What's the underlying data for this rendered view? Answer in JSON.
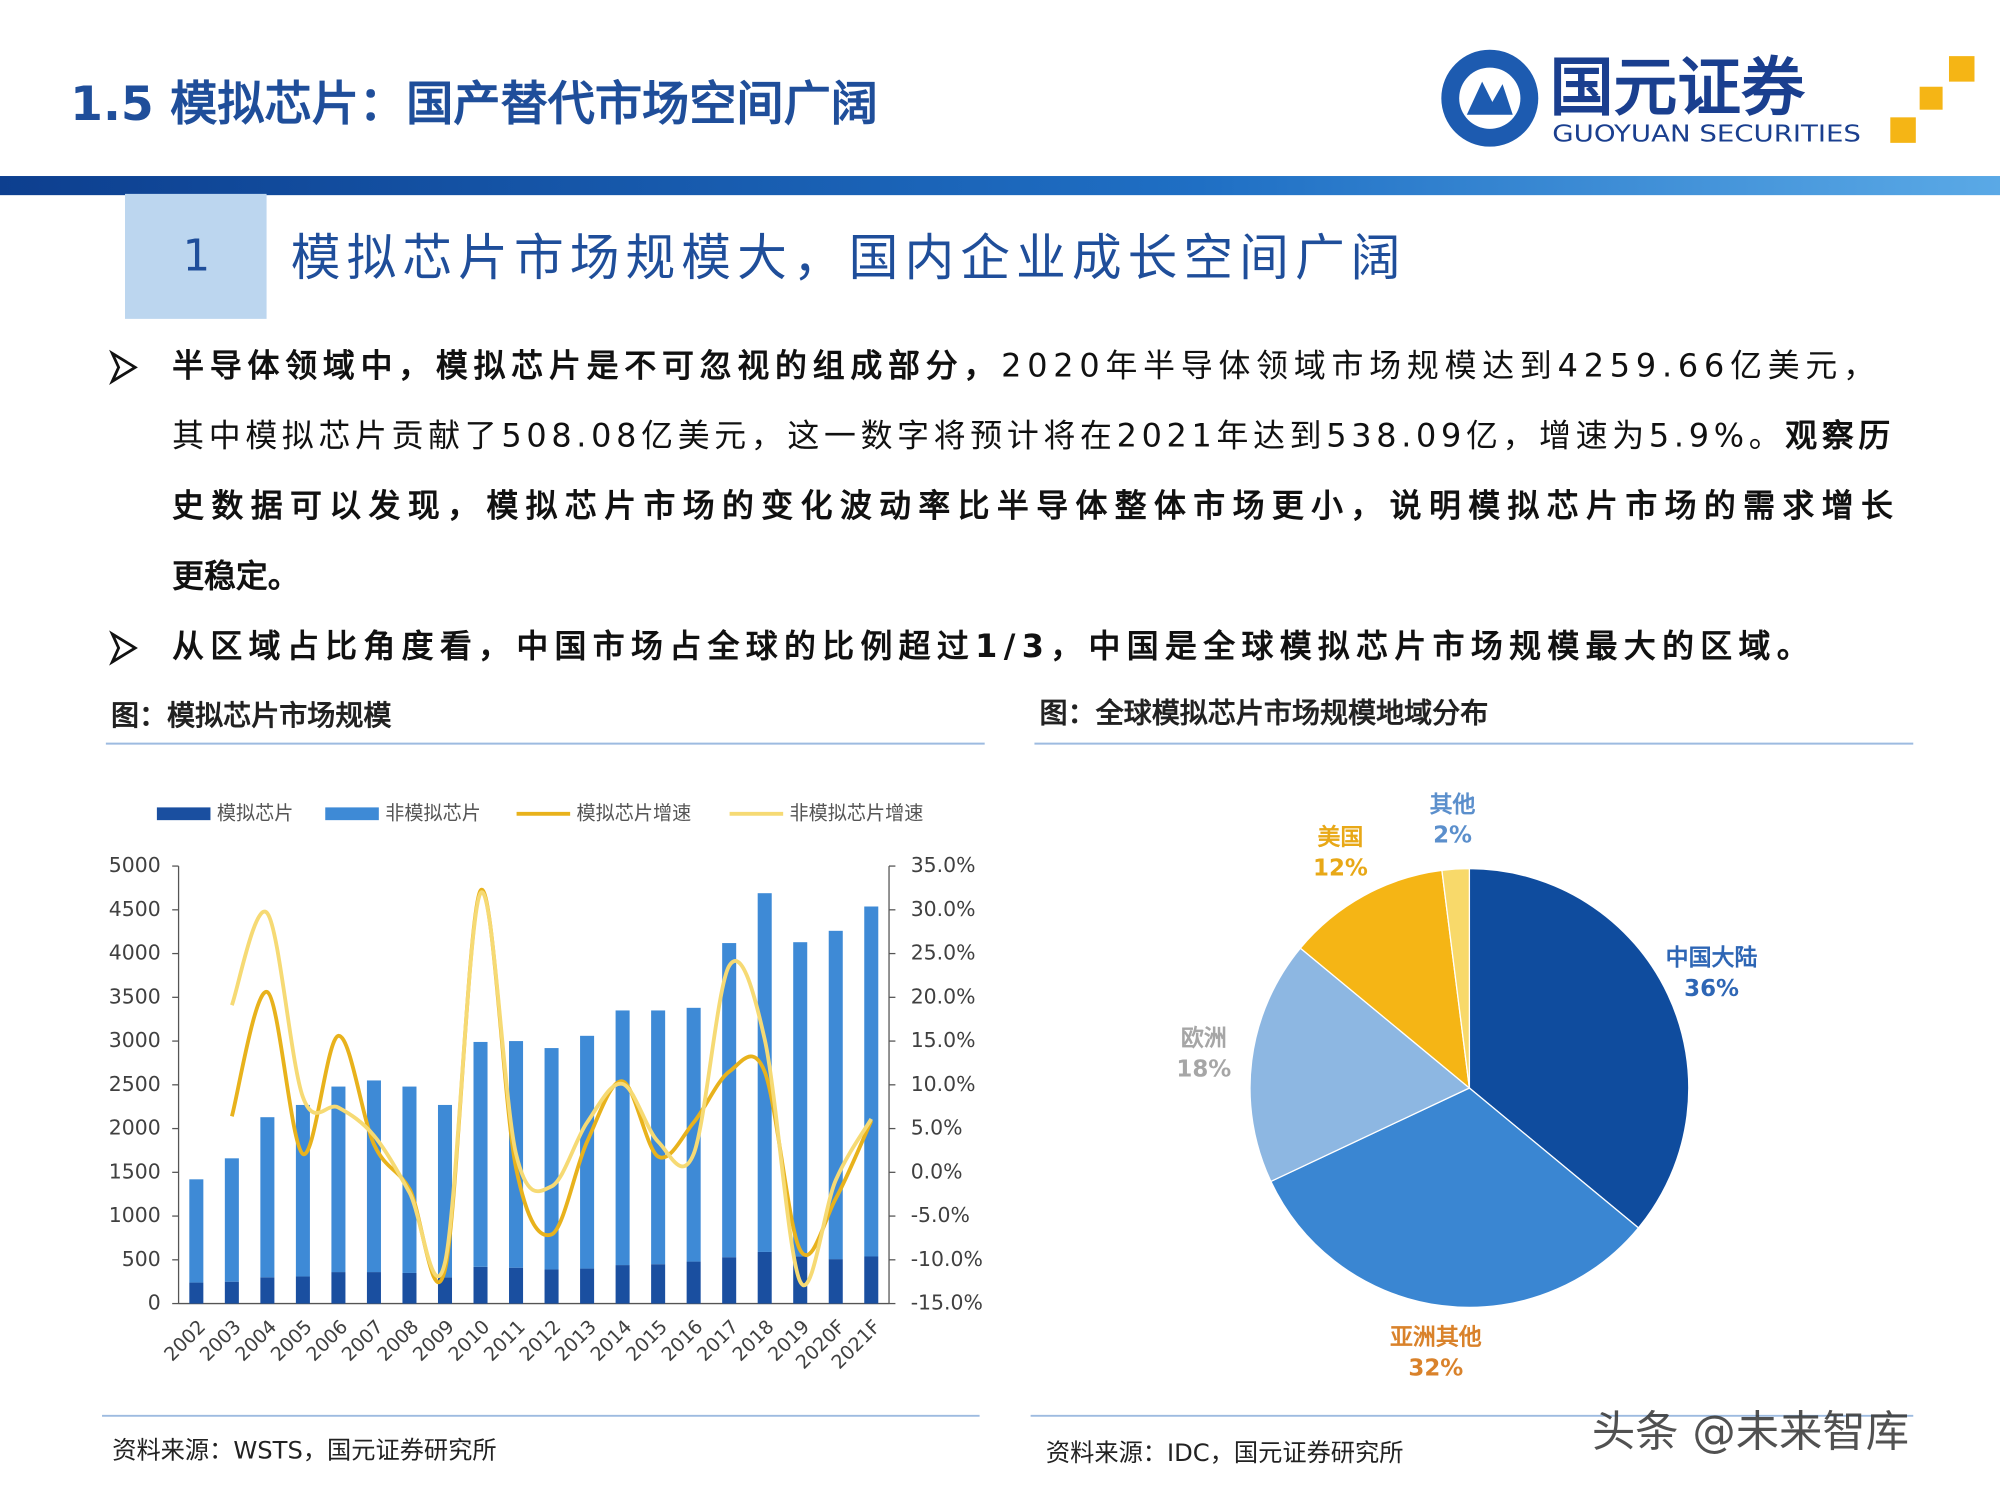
{
  "header": {
    "title": "1.5 模拟芯片：国产替代市场空间广阔",
    "logo_name": "国元证券",
    "logo_en": "GUOYUAN SECURITIES"
  },
  "section": {
    "number": "1",
    "title": "模拟芯片市场规模大，国内企业成长空间广阔"
  },
  "bullets": [
    [
      [
        {
          "text": "半导体领域中，模拟芯片是不可忽视的组成部分，",
          "bold": true
        },
        {
          "text": "2020年半导体领域市场规模达到4259.66亿美元，",
          "bold": false
        }
      ],
      [
        {
          "text": "其中模拟芯片贡献了508.08亿美元，这一数字将预计将在2021年达到538.09亿，增速为5.9%。",
          "bold": false
        },
        {
          "text": "观察历",
          "bold": true
        }
      ],
      [
        {
          "text": "史数据可以发现，模拟芯片市场的变化波动率比半导体整体市场更小，说明模拟芯片市场的需求增长",
          "bold": true
        }
      ],
      [
        {
          "text": "更稳定。",
          "bold": true
        }
      ]
    ],
    [
      [
        {
          "text": "从区域占比角度看，中国市场占全球的比例超过1/3，中国是全球模拟芯片市场规模最大的区域。",
          "bold": true
        }
      ]
    ]
  ],
  "chart_data": [
    {
      "type": "bar",
      "title": "图：模拟芯片市场规模",
      "source": "资料来源：WSTS，国元证券研究所",
      "categories": [
        "2002",
        "2003",
        "2004",
        "2005",
        "2006",
        "2007",
        "2008",
        "2009",
        "2010",
        "2011",
        "2012",
        "2013",
        "2014",
        "2015",
        "2016",
        "2017",
        "2018",
        "2019",
        "2020F",
        "2021F"
      ],
      "series": [
        {
          "name": "模拟芯片",
          "type": "bar",
          "color": "#1a4fa0",
          "values": [
            240,
            250,
            300,
            310,
            360,
            360,
            350,
            300,
            420,
            410,
            390,
            400,
            440,
            450,
            480,
            530,
            590,
            540,
            508,
            538
          ]
        },
        {
          "name": "非模拟芯片",
          "type": "bar",
          "color": "#3e8ad6",
          "values": [
            1180,
            1410,
            1830,
            1960,
            2120,
            2190,
            2130,
            1970,
            2570,
            2590,
            2530,
            2660,
            2910,
            2900,
            2900,
            3590,
            4100,
            3590,
            3752,
            4000
          ]
        },
        {
          "name": "模拟芯片增速",
          "type": "line",
          "axis": "y2",
          "color": "#e8b21c",
          "values": [
            null,
            6.4,
            20.6,
            2.1,
            15.6,
            3.2,
            -1.9,
            -11.1,
            32.2,
            0.5,
            -7.1,
            3.5,
            10.4,
            1.8,
            5.7,
            11.5,
            11.5,
            -8.9,
            -3,
            5.9
          ]
        },
        {
          "name": "非模拟芯片增速",
          "type": "line",
          "axis": "y2",
          "color": "#f6da74",
          "values": [
            null,
            19.1,
            29.6,
            8.6,
            7.4,
            4.2,
            -2.3,
            -10.3,
            31.9,
            2.1,
            -1.6,
            5.7,
            10.1,
            3.5,
            2.1,
            23.6,
            15.2,
            -12.5,
            -0.9,
            6.1
          ]
        }
      ],
      "ylim": [
        0,
        5000
      ],
      "yticks": [
        0,
        500,
        1000,
        1500,
        2000,
        2500,
        3000,
        3500,
        4000,
        4500,
        5000
      ],
      "y2lim": [
        -15,
        35
      ],
      "y2ticks": [
        {
          "value": -15,
          "label": "-15.0%"
        },
        {
          "value": -10,
          "label": "-10.0%"
        },
        {
          "value": -5,
          "label": "-5.0%"
        },
        {
          "value": 0,
          "label": "0.0%"
        },
        {
          "value": 5,
          "label": "5.0%"
        },
        {
          "value": 10,
          "label": "10.0%"
        },
        {
          "value": 15,
          "label": "15.0%"
        },
        {
          "value": 20,
          "label": "20.0%"
        },
        {
          "value": 25,
          "label": "25.0%"
        },
        {
          "value": 30,
          "label": "30.0%"
        },
        {
          "value": 35,
          "label": "35.0%"
        }
      ],
      "grid": false,
      "legend": "top"
    },
    {
      "type": "pie",
      "title": "图：全球模拟芯片市场规模地域分布",
      "source": "资料来源：IDC，国元证券研究所",
      "categories": [
        "中国大陆",
        "亚洲其他",
        "欧洲",
        "美国",
        "其他"
      ],
      "values": [
        36,
        32,
        18,
        12,
        2
      ],
      "value_labels": [
        "36%",
        "32%",
        "18%",
        "12%",
        "2%"
      ],
      "colors": [
        "#0f4c9e",
        "#3a86d2",
        "#8db7e2",
        "#f5b515",
        "#f8d96a"
      ],
      "label_colors": [
        "#2e66b5",
        "#d9822b",
        "#a6a6a6",
        "#e8a817",
        "#5b8fcc"
      ]
    }
  ],
  "watermark": "头条 @未来智库"
}
